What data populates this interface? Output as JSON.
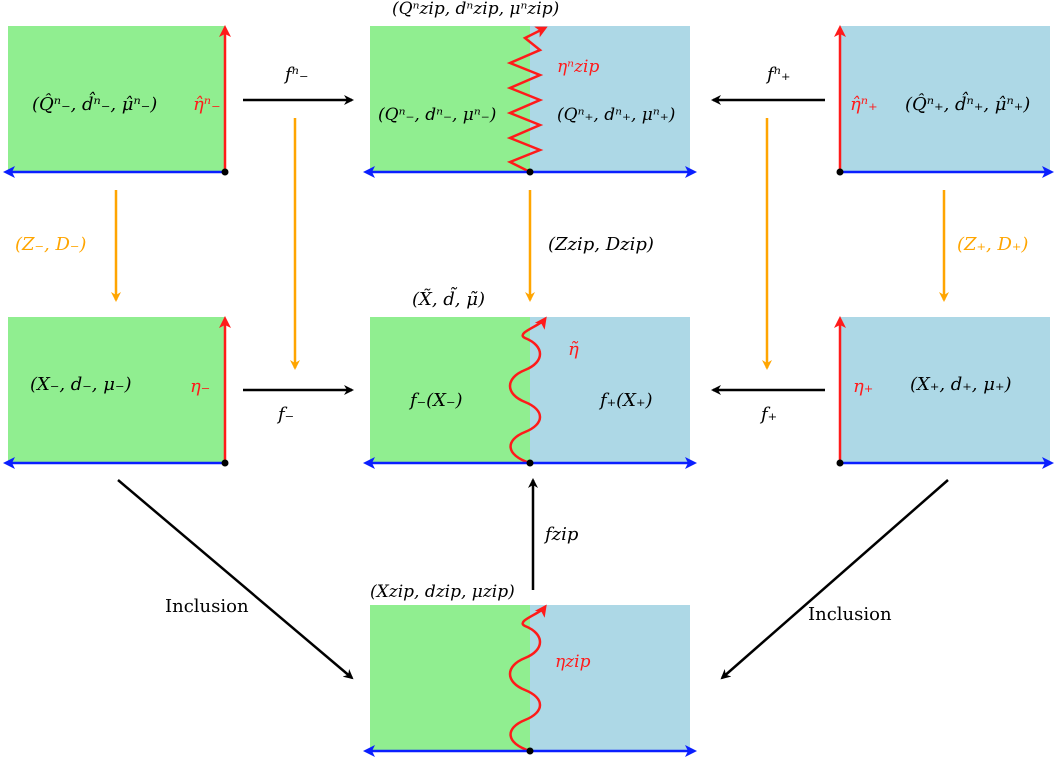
{
  "colors": {
    "green": "#90ee90",
    "blue_fill": "#add8e6",
    "red": "#ff1a1a",
    "axis_blue": "#0a1fff",
    "orange": "#ffa500",
    "black": "#000000"
  },
  "top": {
    "left_label": "(Q̂ⁿ₋, d̂ⁿ₋, μ̂ⁿ₋)",
    "left_curve": "η̂ⁿ₋",
    "center_title": "(Qⁿzip, dⁿzip, μⁿzip)",
    "center_curve": "ηⁿzip",
    "center_left": "(Qⁿ₋, dⁿ₋, μⁿ₋)",
    "center_right": "(Qⁿ₊, dⁿ₊, μⁿ₊)",
    "right_curve": "η̂ⁿ₊",
    "right_label": "(Q̂ⁿ₊, d̂ⁿ₊, μ̂ⁿ₊)",
    "map_left": "fⁿ₋",
    "map_right": "fⁿ₊"
  },
  "vertical": {
    "left": "(Z₋, D₋)",
    "center": "(Zzip, Dzip)",
    "right": "(Z₊, D₊)"
  },
  "middle": {
    "left_label": "(X₋, d₋, μ₋)",
    "left_curve": "η₋",
    "center_title": "(X̃, d̃, μ̃)",
    "center_curve": "η̃",
    "center_left": "f₋(X₋)",
    "center_right": "f₊(X₊)",
    "right_curve": "η₊",
    "right_label": "(X₊, d₊, μ₊)",
    "map_left": "f₋",
    "map_right": "f₊"
  },
  "bottom": {
    "map_up": "fzip",
    "title": "(Xzip, dzip, μzip)",
    "curve": "ηzip",
    "inclusion_left": "Inclusion",
    "inclusion_right": "Inclusion"
  }
}
